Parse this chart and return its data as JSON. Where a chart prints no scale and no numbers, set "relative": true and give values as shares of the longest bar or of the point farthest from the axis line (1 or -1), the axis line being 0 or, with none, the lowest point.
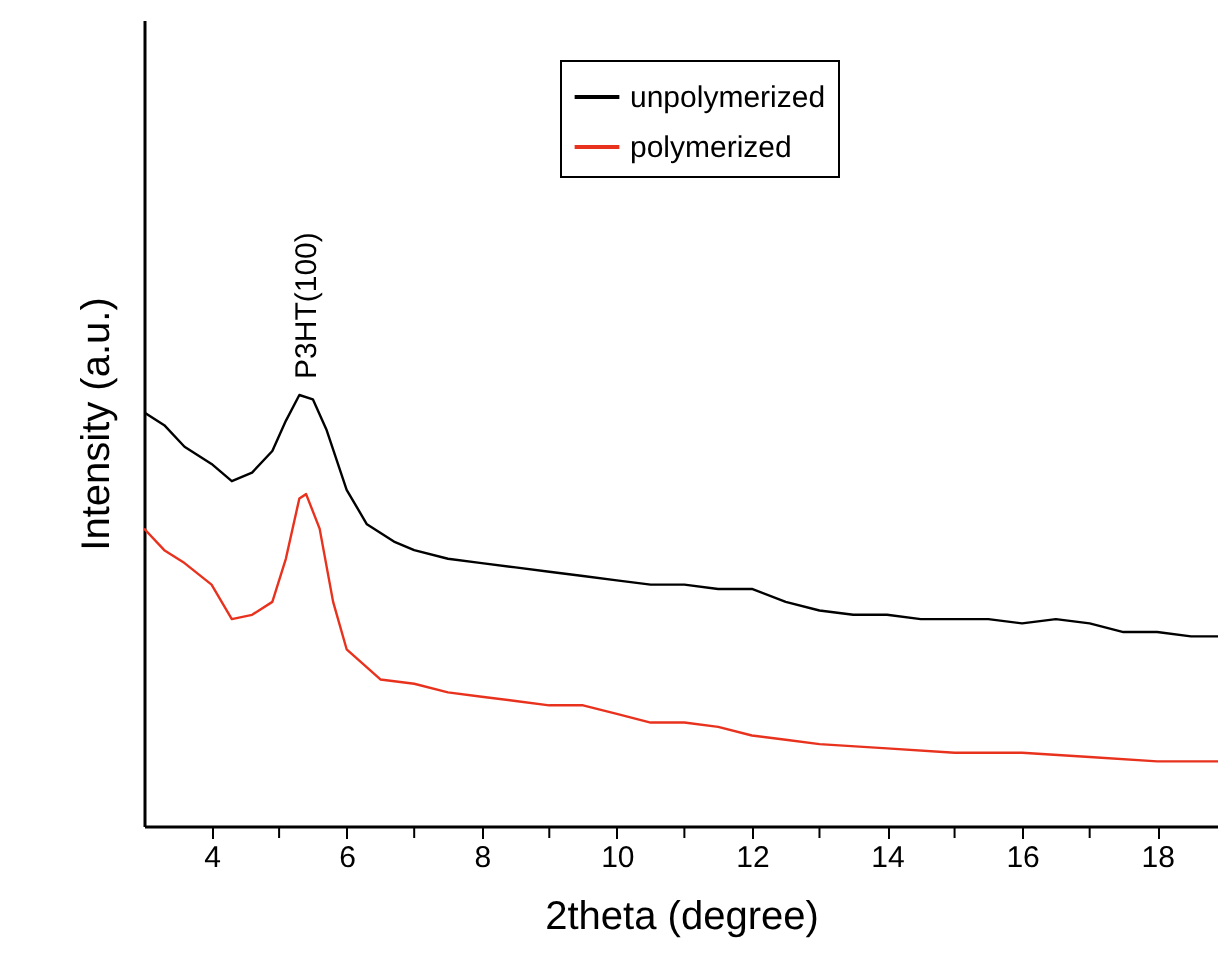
{
  "chart_data": {
    "type": "line",
    "xlabel": "2theta (degree)",
    "ylabel": "Intensity (a.u.)",
    "relative": true,
    "legend": "top right",
    "grid": false,
    "xlim": [
      3,
      18.9
    ],
    "xticks": [
      4,
      {
        "value": 5,
        "label": null
      },
      6,
      {
        "value": 7,
        "label": null
      },
      8,
      {
        "value": 9,
        "label": null
      },
      10,
      {
        "value": 11,
        "label": null
      },
      12,
      {
        "value": 13,
        "label": null
      },
      14,
      {
        "value": 15,
        "label": null
      },
      16,
      {
        "value": 17,
        "label": null
      },
      18
    ],
    "annotations": [
      {
        "text": "P3HT(100)",
        "x": 5.4,
        "y": 1.0
      }
    ],
    "series": [
      {
        "name": "unpolymerized",
        "color": "#000000",
        "x": [
          3.0,
          3.3,
          3.6,
          4.0,
          4.3,
          4.6,
          4.9,
          5.1,
          5.3,
          5.5,
          5.7,
          6.0,
          6.3,
          6.7,
          7.0,
          7.5,
          8.0,
          8.5,
          9.0,
          9.5,
          10,
          10.5,
          11,
          11.5,
          12,
          12.5,
          13,
          13.5,
          14,
          14.5,
          15,
          15.5,
          16,
          16.5,
          17,
          17.5,
          18,
          18.5,
          18.9
        ],
        "values": [
          0.96,
          0.93,
          0.88,
          0.84,
          0.8,
          0.82,
          0.87,
          0.94,
          1.0,
          0.99,
          0.92,
          0.78,
          0.7,
          0.66,
          0.64,
          0.62,
          0.61,
          0.6,
          0.59,
          0.58,
          0.57,
          0.56,
          0.56,
          0.55,
          0.55,
          0.52,
          0.5,
          0.49,
          0.49,
          0.48,
          0.48,
          0.48,
          0.47,
          0.48,
          0.47,
          0.45,
          0.45,
          0.44,
          0.44
        ]
      },
      {
        "name": "polymerized",
        "color": "#e8321e",
        "x": [
          3.0,
          3.3,
          3.6,
          4.0,
          4.3,
          4.6,
          4.9,
          5.1,
          5.3,
          5.4,
          5.6,
          5.8,
          6.0,
          6.5,
          7,
          7.5,
          8,
          8.5,
          9,
          9.5,
          10,
          10.5,
          11,
          11.5,
          12,
          12.5,
          13,
          14,
          15,
          16,
          17,
          18,
          18.9
        ],
        "values": [
          0.69,
          0.64,
          0.61,
          0.56,
          0.48,
          0.49,
          0.52,
          0.62,
          0.76,
          0.77,
          0.69,
          0.52,
          0.41,
          0.34,
          0.33,
          0.31,
          0.3,
          0.29,
          0.28,
          0.28,
          0.26,
          0.24,
          0.24,
          0.23,
          0.21,
          0.2,
          0.19,
          0.18,
          0.17,
          0.17,
          0.16,
          0.15,
          0.15
        ]
      }
    ]
  }
}
